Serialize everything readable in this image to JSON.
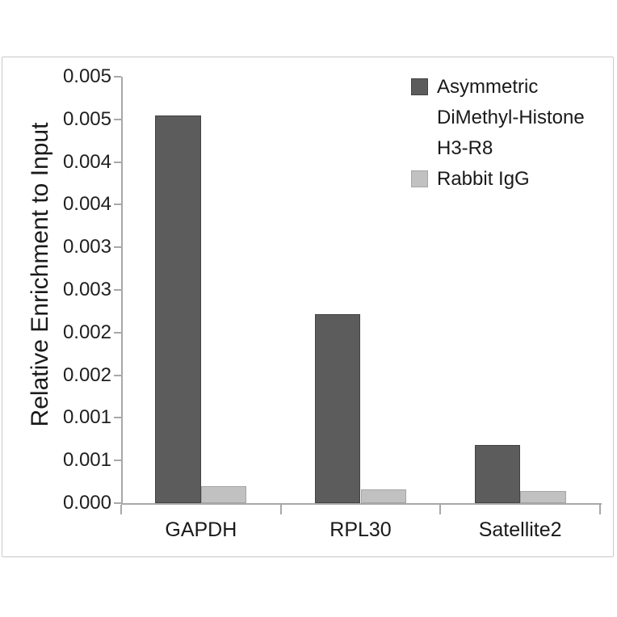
{
  "colors": {
    "background": "#ffffff",
    "frame_border": "#c9c9c9",
    "axis_line": "#a8a8a8",
    "text": "#1a1a1a",
    "series1_fill": "#5c5c5c",
    "series1_border": "#434343",
    "series2_fill": "#c1c1c1",
    "series2_border": "#a5a5a5"
  },
  "chart_data": {
    "type": "bar",
    "title": "",
    "categories": [
      "GAPDH",
      "RPL30",
      "Satellite2"
    ],
    "series": [
      {
        "name": "Asymmetric DiMethyl-Histone H3-R8",
        "values": [
          0.00455,
          0.00222,
          0.00068
        ],
        "color": "#5c5c5c",
        "border_color": "#434343"
      },
      {
        "name": "Rabbit IgG",
        "values": [
          0.0002,
          0.00016,
          0.00014
        ],
        "color": "#c1c1c1",
        "border_color": "#a5a5a5"
      }
    ],
    "xlabel": "",
    "ylabel": "Relative Enrichment to Input",
    "ylim": [
      0,
      0.005
    ],
    "y_tick_interval": 0.0005,
    "y_tick_labels_top_to_bottom": [
      "0.005",
      "0.005",
      "0.004",
      "0.004",
      "0.003",
      "0.003",
      "0.002",
      "0.002",
      "0.001",
      "0.001",
      "0.000"
    ],
    "grid": false,
    "legend_position": "top-right",
    "bar_gap_width_percent": 150
  }
}
